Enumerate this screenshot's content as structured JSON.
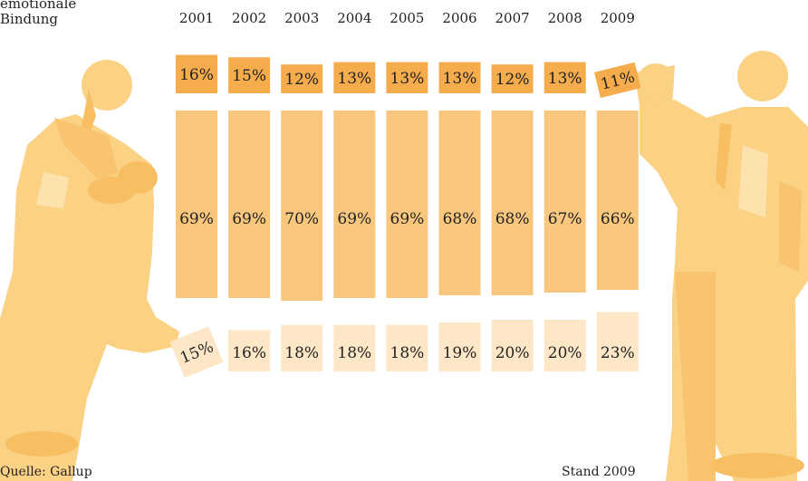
{
  "header": {
    "line1": "emotionale",
    "line2": "Bindung"
  },
  "footer": {
    "source": "Quelle: Gallup",
    "stand": "Stand 2009"
  },
  "colors": {
    "top": "#f4ac4c",
    "middle": "#f8c77d",
    "bottom": "#fde7c7",
    "figure": "#fbd184",
    "text": "#222222"
  },
  "chart_data": {
    "type": "bar",
    "stacked": true,
    "categories": [
      "2001",
      "2002",
      "2003",
      "2004",
      "2005",
      "2006",
      "2007",
      "2008",
      "2009"
    ],
    "series": [
      {
        "key": "top",
        "values": [
          16,
          15,
          12,
          13,
          13,
          13,
          12,
          13,
          11
        ]
      },
      {
        "key": "middle",
        "values": [
          69,
          69,
          70,
          69,
          69,
          68,
          68,
          67,
          66
        ]
      },
      {
        "key": "bottom",
        "values": [
          15,
          16,
          18,
          18,
          18,
          19,
          20,
          20,
          23
        ]
      }
    ],
    "value_suffix": "%",
    "legend": "none",
    "grid": false
  }
}
